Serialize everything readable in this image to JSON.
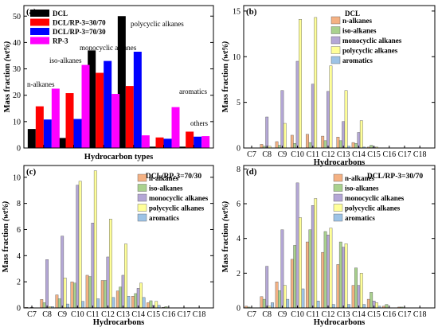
{
  "chart_data": [
    {
      "panel_label": "(a)",
      "type": "bar",
      "xlabel": "Hydrocarbon types",
      "ylabel": "Mass fraction (wt%)",
      "ylim": [
        0,
        54
      ],
      "yticks": [
        0,
        10,
        20,
        30,
        40,
        50
      ],
      "categories": [
        "n-alkanes",
        "iso-alkanes",
        "monocyclic alkanes",
        "polycyclic alkanes",
        "aromatics",
        "others"
      ],
      "annotations": [
        "n-alkanes",
        "iso-alkanes",
        "monocyclic alkanes",
        "polycyclic alkanes",
        "aromatics",
        "others"
      ],
      "legend_position": "top-left",
      "series": [
        {
          "name": "DCL",
          "color": "#000000",
          "values": [
            7.2,
            3.8,
            37.0,
            50.0,
            0.5,
            0.5
          ]
        },
        {
          "name": "DCL/RP-3=30/70",
          "color": "#ff0000",
          "values": [
            15.8,
            20.8,
            28.5,
            23.5,
            4.0,
            6.2
          ]
        },
        {
          "name": "DCL/RP-3=70/30",
          "color": "#0000ff",
          "values": [
            10.8,
            11.0,
            33.0,
            36.5,
            3.5,
            4.3
          ]
        },
        {
          "name": "RP-3",
          "color": "#ff00ff",
          "values": [
            22.5,
            31.5,
            20.5,
            4.8,
            15.5,
            4.5
          ]
        }
      ]
    },
    {
      "panel_label": "(b)",
      "type": "bar",
      "xlabel": "Hydrocarbons",
      "ylabel": "Mass fraction (wt%)",
      "ylim": [
        0,
        15.6
      ],
      "yticks": [
        0,
        5,
        10,
        15
      ],
      "legend_title": "DCL",
      "legend_position": "top-right",
      "categories": [
        "C7",
        "C8",
        "C9",
        "C10",
        "C11",
        "C12",
        "C13",
        "C14",
        "C15",
        "C16",
        "C17",
        "C18"
      ],
      "series": [
        {
          "name": "n-alkanes",
          "color": "#f4b183",
          "values": [
            0,
            0.4,
            0.7,
            1.4,
            1.5,
            1.3,
            1.2,
            0.6,
            0.1,
            0,
            0,
            0
          ]
        },
        {
          "name": "iso-alkanes",
          "color": "#a9d18e",
          "values": [
            0,
            0.2,
            0.3,
            0.5,
            0.6,
            0.8,
            0.8,
            0.5,
            0.3,
            0,
            0,
            0
          ]
        },
        {
          "name": "monocyclic alkanes",
          "color": "#b4a7d6",
          "values": [
            0,
            3.4,
            6.3,
            9.5,
            7.0,
            6.2,
            2.9,
            1.7,
            0.1,
            0,
            0,
            0
          ]
        },
        {
          "name": "polycyclic alkanes",
          "color": "#ffff99",
          "values": [
            0,
            0.2,
            2.7,
            14.1,
            14.3,
            9.0,
            6.3,
            3.0,
            0.1,
            0,
            0,
            0
          ]
        },
        {
          "name": "aromatics",
          "color": "#9dc3e6",
          "values": [
            0,
            0,
            0,
            0,
            0,
            0,
            0.2,
            0.1,
            0,
            0,
            0,
            0
          ]
        }
      ]
    },
    {
      "panel_label": "(c)",
      "type": "bar",
      "title": "DCL/RP-3=70/30",
      "xlabel": "Hydrocarbons",
      "ylabel": "Mass fraction (wt%)",
      "ylim": [
        0,
        10.9
      ],
      "yticks": [
        0,
        2,
        4,
        6,
        8,
        10
      ],
      "categories": [
        "C7",
        "C8",
        "C9",
        "C10",
        "C11",
        "C12",
        "C13",
        "C14",
        "C15",
        "C16",
        "C17",
        "C18"
      ],
      "series": [
        {
          "name": "n-alkanes",
          "color": "#f4b183",
          "values": [
            0.05,
            0.65,
            1.0,
            2.0,
            2.5,
            2.1,
            1.3,
            0.9,
            0.4,
            0.05,
            0,
            0
          ]
        },
        {
          "name": "iso-alkanes",
          "color": "#a9d18e",
          "values": [
            0,
            0.4,
            0.7,
            1.9,
            2.4,
            2.1,
            1.6,
            1.1,
            0.55,
            0.1,
            0,
            0
          ]
        },
        {
          "name": "monocyclic alkanes",
          "color": "#b4a7d6",
          "values": [
            0.05,
            3.7,
            5.5,
            9.4,
            6.5,
            3.9,
            2.5,
            1.5,
            0.2,
            0,
            0,
            0
          ]
        },
        {
          "name": "polycyclic alkanes",
          "color": "#ffff99",
          "values": [
            0,
            0.1,
            2.3,
            9.7,
            10.5,
            6.8,
            4.9,
            1.9,
            0.5,
            0,
            0,
            0
          ]
        },
        {
          "name": "aromatics",
          "color": "#9dc3e6",
          "values": [
            0,
            0.1,
            0.3,
            0.5,
            0.7,
            0.8,
            0.9,
            0.8,
            0.2,
            0,
            0,
            0
          ]
        }
      ]
    },
    {
      "panel_label": "(d)",
      "type": "bar",
      "title": "DCL/RP-3=30/70",
      "xlabel": "Hydrocarbons",
      "ylabel": "Mass fraction (wt%)",
      "ylim": [
        0,
        8.2
      ],
      "yticks": [
        0,
        2,
        4,
        6,
        8
      ],
      "categories": [
        "C7",
        "C8",
        "C9",
        "C10",
        "C11",
        "C12",
        "C13",
        "C14",
        "C15",
        "C16",
        "C17",
        "C18"
      ],
      "series": [
        {
          "name": "n-alkanes",
          "color": "#f4b183",
          "values": [
            0.1,
            0.65,
            1.5,
            2.8,
            3.8,
            3.2,
            2.5,
            1.3,
            0.5,
            0.1,
            0.05,
            0
          ]
        },
        {
          "name": "iso-alkanes",
          "color": "#a9d18e",
          "values": [
            0.05,
            0.5,
            1.0,
            3.6,
            4.5,
            4.4,
            3.8,
            2.3,
            0.9,
            0.2,
            0.05,
            0
          ]
        },
        {
          "name": "monocyclic alkanes",
          "color": "#b4a7d6",
          "values": [
            0,
            2.4,
            4.5,
            7.2,
            5.9,
            4.2,
            3.5,
            1.3,
            0.4,
            0,
            0,
            0
          ]
        },
        {
          "name": "polycyclic alkanes",
          "color": "#ffff99",
          "values": [
            0,
            0.1,
            1.3,
            5.2,
            6.3,
            4.6,
            3.7,
            2.0,
            0.3,
            0,
            0,
            0
          ]
        },
        {
          "name": "aromatics",
          "color": "#9dc3e6",
          "values": [
            0,
            0.3,
            0.5,
            1.1,
            0.4,
            0.2,
            0.2,
            0.2,
            0.1,
            0,
            0,
            0
          ]
        }
      ]
    }
  ]
}
